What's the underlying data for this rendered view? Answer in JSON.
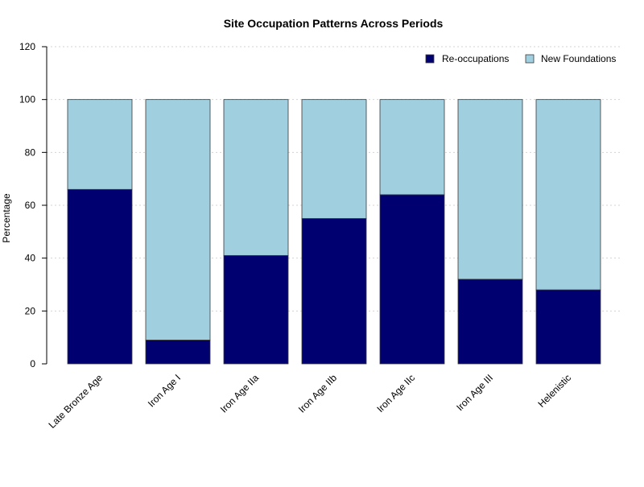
{
  "chart_data": {
    "type": "bar",
    "stacked": true,
    "title": "Site Occupation Patterns Across Periods",
    "xlabel": "",
    "ylabel": "Percentage",
    "ylim": [
      0,
      120
    ],
    "yticks": [
      0,
      20,
      40,
      60,
      80,
      100,
      120
    ],
    "grid": true,
    "legend_position": "top-right",
    "categories": [
      "Late Bronze Age",
      "Iron Age I",
      "Iron Age IIa",
      "Iron Age IIb",
      "Iron Age IIc",
      "Iron Age III",
      "Helenistic"
    ],
    "series": [
      {
        "name": "Re-occupations",
        "color": "#000070",
        "values": [
          66,
          9,
          41,
          55,
          64,
          32,
          28
        ]
      },
      {
        "name": "New Foundations",
        "color": "#a0cfe0",
        "values": [
          34,
          91,
          59,
          45,
          36,
          68,
          72
        ]
      }
    ]
  }
}
